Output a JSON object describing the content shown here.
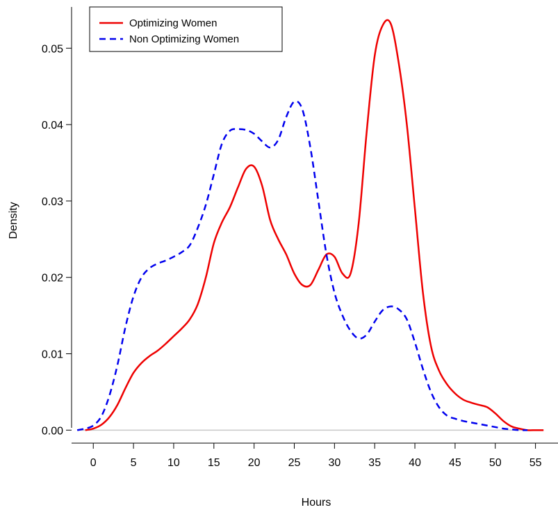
{
  "chart_data": {
    "type": "line",
    "title": "",
    "xlabel": "Hours",
    "ylabel": "Density",
    "xlim": [
      -2.7,
      57.8
    ],
    "ylim": [
      -0.0017,
      0.0554
    ],
    "xticks": [
      0,
      5,
      10,
      15,
      20,
      25,
      30,
      35,
      40,
      45,
      50,
      55
    ],
    "yticks": [
      0.0,
      0.01,
      0.02,
      0.03,
      0.04,
      0.05
    ],
    "xtick_labels": [
      "0",
      "5",
      "10",
      "15",
      "20",
      "25",
      "30",
      "35",
      "40",
      "45",
      "50",
      "55"
    ],
    "ytick_labels": [
      "0.00",
      "0.01",
      "0.02",
      "0.03",
      "0.04",
      "0.05"
    ],
    "grid": false,
    "legend_position": "top-left",
    "baseline": {
      "y": 0,
      "color": "#c8c8c8"
    },
    "series": [
      {
        "name": "Optimizing Women",
        "color": "#ee0000",
        "dash": "solid",
        "x": [
          -1,
          0,
          1,
          2,
          3,
          4,
          5,
          6,
          7,
          8,
          9,
          10,
          11,
          12,
          13,
          14,
          15,
          16,
          17,
          18,
          19,
          20,
          21,
          22,
          23,
          24,
          25,
          26,
          27,
          28,
          29,
          30,
          31,
          32,
          33,
          34,
          35,
          36,
          37,
          38,
          39,
          40,
          41,
          42,
          43,
          44,
          45,
          46,
          47,
          48,
          49,
          50,
          51,
          52,
          53,
          54,
          55,
          56
        ],
        "y": [
          0.0,
          0.0002,
          0.0007,
          0.0017,
          0.0033,
          0.0055,
          0.0075,
          0.0088,
          0.0097,
          0.0104,
          0.0113,
          0.0123,
          0.0133,
          0.0145,
          0.0165,
          0.02,
          0.0245,
          0.0272,
          0.0292,
          0.0318,
          0.0342,
          0.0345,
          0.032,
          0.0275,
          0.025,
          0.023,
          0.0205,
          0.019,
          0.019,
          0.021,
          0.023,
          0.0227,
          0.0205,
          0.0205,
          0.027,
          0.039,
          0.049,
          0.053,
          0.0532,
          0.048,
          0.04,
          0.029,
          0.018,
          0.011,
          0.0078,
          0.006,
          0.0048,
          0.004,
          0.0036,
          0.0033,
          0.003,
          0.0022,
          0.0012,
          0.0005,
          0.0002,
          0.0,
          0.0,
          0.0
        ]
      },
      {
        "name": "Non Optimizing Women",
        "color": "#0000ee",
        "dash": "dashed",
        "x": [
          -2,
          -1,
          0,
          1,
          2,
          3,
          4,
          5,
          6,
          7,
          8,
          9,
          10,
          11,
          12,
          13,
          14,
          15,
          16,
          17,
          18,
          19,
          20,
          21,
          22,
          23,
          24,
          25,
          26,
          27,
          28,
          29,
          30,
          31,
          32,
          33,
          34,
          35,
          36,
          37,
          38,
          39,
          40,
          41,
          42,
          43,
          44,
          45,
          46,
          47,
          48,
          49,
          50,
          51,
          52,
          53,
          54
        ],
        "y": [
          0.0,
          0.0002,
          0.0006,
          0.0018,
          0.0045,
          0.0085,
          0.0135,
          0.0175,
          0.02,
          0.0212,
          0.0218,
          0.0222,
          0.0227,
          0.0233,
          0.0242,
          0.0265,
          0.0295,
          0.0335,
          0.0375,
          0.0392,
          0.0394,
          0.0393,
          0.0388,
          0.0378,
          0.037,
          0.038,
          0.041,
          0.043,
          0.042,
          0.037,
          0.03,
          0.023,
          0.018,
          0.015,
          0.013,
          0.012,
          0.0125,
          0.0142,
          0.0157,
          0.0162,
          0.0158,
          0.0145,
          0.0115,
          0.008,
          0.005,
          0.003,
          0.0019,
          0.0015,
          0.0012,
          0.001,
          0.0008,
          0.0006,
          0.0004,
          0.0002,
          0.0001,
          0.0,
          0.0
        ]
      }
    ]
  }
}
